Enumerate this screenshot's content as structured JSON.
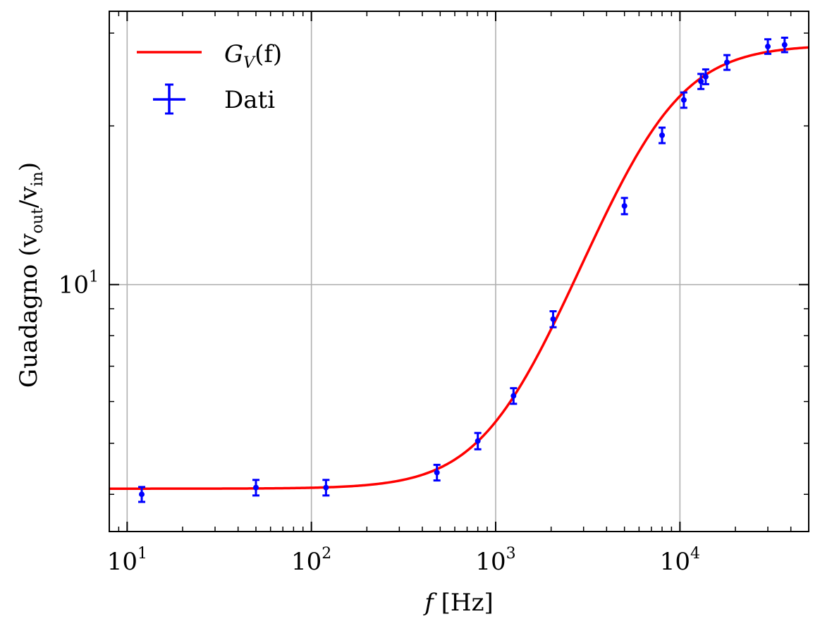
{
  "chart_data": {
    "type": "scatter",
    "xscale": "log",
    "yscale": "log",
    "xlim": [
      8,
      50000
    ],
    "ylim": [
      3.4,
      33
    ],
    "grid": true,
    "legend_position": "top-left",
    "xlabel": {
      "italic": "f",
      "rest": " [Hz]"
    },
    "ylabel": {
      "main": "Guadagno (v",
      "sub1": "out",
      "mid": "/v",
      "sub2": "in",
      "end": ")"
    },
    "x_ticks": [
      {
        "value": 10,
        "base": "10",
        "exp": "1"
      },
      {
        "value": 100,
        "base": "10",
        "exp": "2"
      },
      {
        "value": 1000,
        "base": "10",
        "exp": "3"
      },
      {
        "value": 10000,
        "base": "10",
        "exp": "4"
      }
    ],
    "y_ticks": [
      {
        "value": 10,
        "base": "10",
        "exp": "1"
      }
    ],
    "legend": [
      {
        "label": "G",
        "sub": "V",
        "tail": "(f)",
        "kind": "line",
        "color": "#ff0000"
      },
      {
        "label": "Dati",
        "kind": "errorbar",
        "color": "#0000ff"
      }
    ],
    "model": {
      "name": "G_V(f)",
      "color": "#ff0000",
      "g_low": 4.1,
      "g_high": 28.5,
      "f_zero": 1100,
      "f_pole": 7700
    },
    "series": [
      {
        "name": "Dati",
        "color": "#0000ff",
        "points": [
          {
            "x": 12,
            "y": 4.0,
            "yerr": 0.13
          },
          {
            "x": 50,
            "y": 4.12,
            "yerr": 0.14
          },
          {
            "x": 120,
            "y": 4.12,
            "yerr": 0.14
          },
          {
            "x": 480,
            "y": 4.4,
            "yerr": 0.15
          },
          {
            "x": 800,
            "y": 5.05,
            "yerr": 0.18
          },
          {
            "x": 1250,
            "y": 6.15,
            "yerr": 0.21
          },
          {
            "x": 2050,
            "y": 8.6,
            "yerr": 0.3
          },
          {
            "x": 5000,
            "y": 14.1,
            "yerr": 0.5
          },
          {
            "x": 8000,
            "y": 19.2,
            "yerr": 0.65
          },
          {
            "x": 10500,
            "y": 22.4,
            "yerr": 0.75
          },
          {
            "x": 13000,
            "y": 24.3,
            "yerr": 0.8
          },
          {
            "x": 13800,
            "y": 24.8,
            "yerr": 0.8
          },
          {
            "x": 18000,
            "y": 26.4,
            "yerr": 0.85
          },
          {
            "x": 30000,
            "y": 28.3,
            "yerr": 0.9
          },
          {
            "x": 37000,
            "y": 28.5,
            "yerr": 0.9
          }
        ]
      }
    ]
  }
}
